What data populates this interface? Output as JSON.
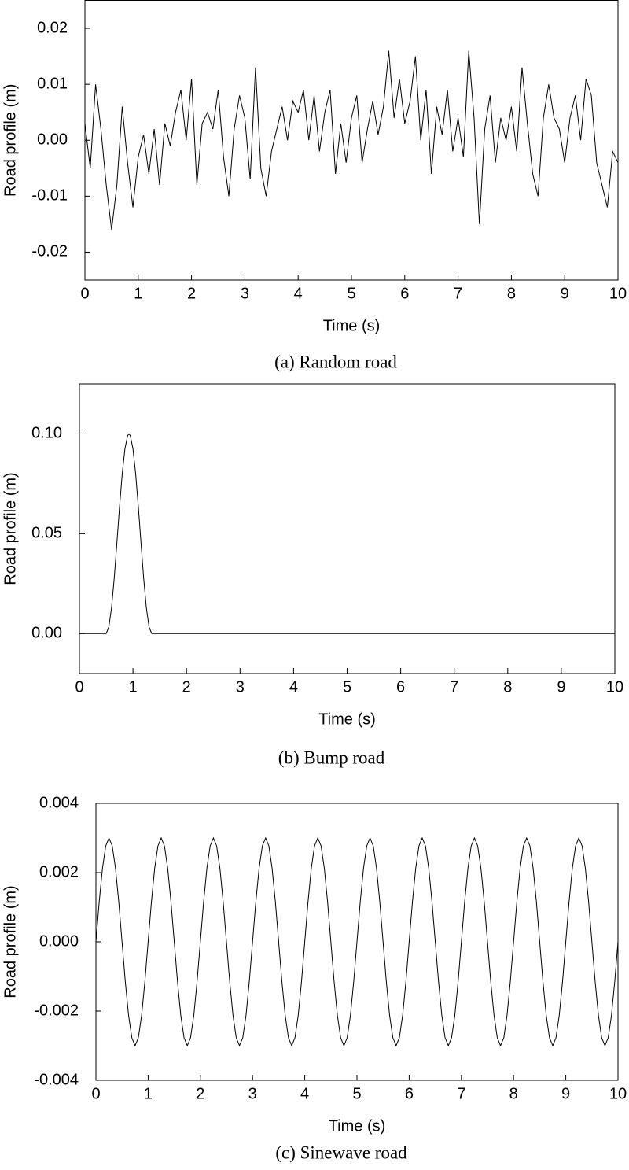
{
  "chart_data": [
    {
      "type": "line",
      "caption": "(a) Random road",
      "xlabel": "Time (s)",
      "ylabel": "Road profile (m)",
      "x": [
        0,
        0.1,
        0.2,
        0.3,
        0.4,
        0.5,
        0.6,
        0.7,
        0.8,
        0.9,
        1,
        1.1,
        1.2,
        1.3,
        1.4,
        1.5,
        1.6,
        1.7,
        1.8,
        1.9,
        2,
        2.1,
        2.2,
        2.3,
        2.4,
        2.5,
        2.6,
        2.7,
        2.8,
        2.9,
        3,
        3.1,
        3.2,
        3.3,
        3.4,
        3.5,
        3.6,
        3.7,
        3.8,
        3.9,
        4,
        4.1,
        4.2,
        4.3,
        4.4,
        4.5,
        4.6,
        4.7,
        4.8,
        4.9,
        5,
        5.1,
        5.2,
        5.3,
        5.4,
        5.5,
        5.6,
        5.7,
        5.8,
        5.9,
        6,
        6.1,
        6.2,
        6.3,
        6.4,
        6.5,
        6.6,
        6.7,
        6.8,
        6.9,
        7,
        7.1,
        7.2,
        7.3,
        7.4,
        7.5,
        7.6,
        7.7,
        7.8,
        7.9,
        8,
        8.1,
        8.2,
        8.3,
        8.4,
        8.5,
        8.6,
        8.7,
        8.8,
        8.9,
        9,
        9.1,
        9.2,
        9.3,
        9.4,
        9.5,
        9.6,
        9.7,
        9.8,
        9.9,
        10
      ],
      "series": [
        {
          "color": "#000000",
          "values": [
            0.003,
            -0.005,
            0.01,
            0.002,
            -0.008,
            -0.016,
            -0.008,
            0.006,
            -0.004,
            -0.012,
            -0.003,
            0.001,
            -0.006,
            0.002,
            -0.008,
            0.003,
            -0.001,
            0.005,
            0.009,
            0,
            0.011,
            -0.008,
            0.003,
            0.005,
            0.002,
            0.009,
            -0.003,
            -0.01,
            0.002,
            0.008,
            0.004,
            -0.007,
            0.013,
            -0.005,
            -0.01,
            -0.002,
            0.002,
            0.006,
            0,
            0.007,
            0.005,
            0.009,
            0,
            0.008,
            -0.002,
            0.005,
            0.009,
            -0.006,
            0.003,
            -0.004,
            0.004,
            0.008,
            -0.004,
            0.002,
            0.007,
            0.001,
            0.006,
            0.016,
            0.004,
            0.011,
            0.003,
            0.007,
            0.015,
            0,
            0.009,
            -0.006,
            0.006,
            0.001,
            0.009,
            -0.002,
            0.004,
            -0.003,
            0.016,
            0.004,
            -0.015,
            0.002,
            0.008,
            -0.004,
            0.004,
            0,
            0.006,
            -0.002,
            0.013,
            0.003,
            -0.006,
            -0.01,
            0.004,
            0.01,
            0.004,
            0.002,
            -0.004,
            0.004,
            0.008,
            0,
            0.011,
            0.008,
            -0.004,
            -0.008,
            -0.012,
            -0.002,
            -0.004
          ]
        }
      ],
      "xlim": [
        0,
        10
      ],
      "ylim": [
        -0.025,
        0.025
      ],
      "xticks": [
        0,
        1,
        2,
        3,
        4,
        5,
        6,
        7,
        8,
        9,
        10
      ],
      "yticks": [
        -0.02,
        -0.01,
        {
          "value": 0,
          "label": "0.00"
        },
        0.01,
        0.02
      ]
    },
    {
      "type": "line",
      "caption": "(b) Bump road",
      "xlabel": "Time (s)",
      "ylabel": "Road profile (m)",
      "x": [
        0,
        0.5,
        0.55,
        0.6,
        0.65,
        0.7,
        0.75,
        0.8,
        0.85,
        0.9,
        0.925,
        0.95,
        1,
        1.05,
        1.1,
        1.15,
        1.2,
        1.25,
        1.3,
        1.35,
        10
      ],
      "series": [
        {
          "color": "#000000",
          "values": [
            0,
            0,
            0.0034,
            0.013,
            0.0277,
            0.0454,
            0.0637,
            0.0801,
            0.0925,
            0.0991,
            0.1,
            0.0991,
            0.0925,
            0.0801,
            0.0637,
            0.0454,
            0.0277,
            0.013,
            0.0034,
            0,
            0
          ]
        }
      ],
      "xlim": [
        0,
        10
      ],
      "ylim": [
        -0.02,
        0.125
      ],
      "xticks": [
        0,
        1,
        2,
        3,
        4,
        5,
        6,
        7,
        8,
        9,
        10
      ],
      "yticks": [
        {
          "value": 0,
          "label": "0.00"
        },
        0.05,
        {
          "value": 0.1,
          "label": "0.10"
        }
      ]
    },
    {
      "type": "line",
      "caption": "(c) Sinewave road",
      "xlabel": "Time (s)",
      "ylabel": "Road profile (m)",
      "x": [
        0,
        0.0625,
        0.125,
        0.1875,
        0.25,
        0.3125,
        0.375,
        0.4375,
        0.5,
        0.5625,
        0.625,
        0.6875,
        0.75,
        0.8125,
        0.875,
        0.9375,
        1,
        1.0625,
        1.125,
        1.1875,
        1.25,
        1.3125,
        1.375,
        1.4375,
        1.5,
        1.5625,
        1.625,
        1.6875,
        1.75,
        1.8125,
        1.875,
        1.9375,
        2,
        2.0625,
        2.125,
        2.1875,
        2.25,
        2.3125,
        2.375,
        2.4375,
        2.5,
        2.5625,
        2.625,
        2.6875,
        2.75,
        2.8125,
        2.875,
        2.9375,
        3,
        3.0625,
        3.125,
        3.1875,
        3.25,
        3.3125,
        3.375,
        3.4375,
        3.5,
        3.5625,
        3.625,
        3.6875,
        3.75,
        3.8125,
        3.875,
        3.9375,
        4,
        4.0625,
        4.125,
        4.1875,
        4.25,
        4.3125,
        4.375,
        4.4375,
        4.5,
        4.5625,
        4.625,
        4.6875,
        4.75,
        4.8125,
        4.875,
        4.9375,
        5,
        5.0625,
        5.125,
        5.1875,
        5.25,
        5.3125,
        5.375,
        5.4375,
        5.5,
        5.5625,
        5.625,
        5.6875,
        5.75,
        5.8125,
        5.875,
        5.9375,
        6,
        6.0625,
        6.125,
        6.1875,
        6.25,
        6.3125,
        6.375,
        6.4375,
        6.5,
        6.5625,
        6.625,
        6.6875,
        6.75,
        6.8125,
        6.875,
        6.9375,
        7,
        7.0625,
        7.125,
        7.1875,
        7.25,
        7.3125,
        7.375,
        7.4375,
        7.5,
        7.5625,
        7.625,
        7.6875,
        7.75,
        7.8125,
        7.875,
        7.9375,
        8,
        8.0625,
        8.125,
        8.1875,
        8.25,
        8.3125,
        8.375,
        8.4375,
        8.5,
        8.5625,
        8.625,
        8.6875,
        8.75,
        8.8125,
        8.875,
        8.9375,
        9,
        9.0625,
        9.125,
        9.1875,
        9.25,
        9.3125,
        9.375,
        9.4375,
        9.5,
        9.5625,
        9.625,
        9.6875,
        9.75,
        9.8125,
        9.875,
        9.9375,
        10
      ],
      "series": [
        {
          "color": "#000000",
          "values": [
            0,
            0.00115,
            0.00212,
            0.00277,
            0.003,
            0.00277,
            0.00212,
            0.00115,
            0,
            -0.00115,
            -0.00212,
            -0.00277,
            -0.003,
            -0.00277,
            -0.00212,
            -0.00115,
            0,
            0.00115,
            0.00212,
            0.00277,
            0.003,
            0.00277,
            0.00212,
            0.00115,
            0,
            -0.00115,
            -0.00212,
            -0.00277,
            -0.003,
            -0.00277,
            -0.00212,
            -0.00115,
            0,
            0.00115,
            0.00212,
            0.00277,
            0.003,
            0.00277,
            0.00212,
            0.00115,
            0,
            -0.00115,
            -0.00212,
            -0.00277,
            -0.003,
            -0.00277,
            -0.00212,
            -0.00115,
            0,
            0.00115,
            0.00212,
            0.00277,
            0.003,
            0.00277,
            0.00212,
            0.00115,
            0,
            -0.00115,
            -0.00212,
            -0.00277,
            -0.003,
            -0.00277,
            -0.00212,
            -0.00115,
            0,
            0.00115,
            0.00212,
            0.00277,
            0.003,
            0.00277,
            0.00212,
            0.00115,
            0,
            -0.00115,
            -0.00212,
            -0.00277,
            -0.003,
            -0.00277,
            -0.00212,
            -0.00115,
            0,
            0.00115,
            0.00212,
            0.00277,
            0.003,
            0.00277,
            0.00212,
            0.00115,
            0,
            -0.00115,
            -0.00212,
            -0.00277,
            -0.003,
            -0.00277,
            -0.00212,
            -0.00115,
            0,
            0.00115,
            0.00212,
            0.00277,
            0.003,
            0.00277,
            0.00212,
            0.00115,
            0,
            -0.00115,
            -0.00212,
            -0.00277,
            -0.003,
            -0.00277,
            -0.00212,
            -0.00115,
            0,
            0.00115,
            0.00212,
            0.00277,
            0.003,
            0.00277,
            0.00212,
            0.00115,
            0,
            -0.00115,
            -0.00212,
            -0.00277,
            -0.003,
            -0.00277,
            -0.00212,
            -0.00115,
            0,
            0.00115,
            0.00212,
            0.00277,
            0.003,
            0.00277,
            0.00212,
            0.00115,
            0,
            -0.00115,
            -0.00212,
            -0.00277,
            -0.003,
            -0.00277,
            -0.00212,
            -0.00115,
            0,
            0.00115,
            0.00212,
            0.00277,
            0.003,
            0.00277,
            0.00212,
            0.00115,
            0,
            -0.00115,
            -0.00212,
            -0.00277,
            -0.003,
            -0.00277,
            -0.00212,
            -0.00115,
            0
          ]
        }
      ],
      "xlim": [
        0,
        10
      ],
      "ylim": [
        -0.004,
        0.004
      ],
      "xticks": [
        0,
        1,
        2,
        3,
        4,
        5,
        6,
        7,
        8,
        9,
        10
      ],
      "yticks": [
        -0.004,
        -0.002,
        {
          "value": 0,
          "label": "0.000"
        },
        0.002,
        0.004
      ]
    }
  ]
}
